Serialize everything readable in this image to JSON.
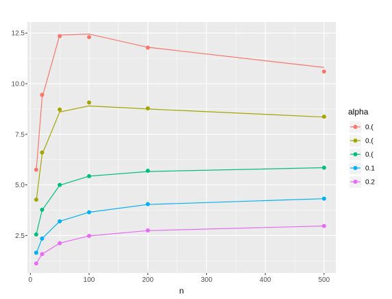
{
  "chart_data": {
    "type": "line",
    "xlabel": "n",
    "ylabel": "",
    "xlim": [
      -5,
      520
    ],
    "ylim": [
      0.65,
      13.05
    ],
    "x_ticks": [
      0,
      100,
      200,
      300,
      400,
      500
    ],
    "x_tick_labels": [
      "0",
      "100",
      "200",
      "300",
      "400",
      "500"
    ],
    "y_ticks": [
      2.5,
      5.0,
      7.5,
      10.0,
      12.5
    ],
    "y_tick_labels": [
      "2.5",
      "5.0",
      "7.5",
      "10.0",
      "12.5"
    ],
    "grid": true,
    "legend": {
      "title": "alpha",
      "placement": "right"
    },
    "x": [
      10,
      20,
      50,
      100,
      200,
      500
    ],
    "series": [
      {
        "name": "0.(",
        "color": "#F8766D",
        "points": [
          5.75,
          9.45,
          12.35,
          12.3,
          11.78,
          10.6
        ],
        "fit": [
          5.7,
          9.3,
          12.4,
          12.45,
          11.8,
          10.8
        ]
      },
      {
        "name": "0.(",
        "color": "#A3A500",
        "points": [
          4.27,
          6.6,
          8.72,
          9.07,
          8.78,
          8.37
        ],
        "fit": [
          4.2,
          6.5,
          8.6,
          8.9,
          8.75,
          8.35
        ]
      },
      {
        "name": "0.(",
        "color": "#00BF7D",
        "points": [
          2.55,
          3.77,
          5.0,
          5.43,
          5.7,
          5.85
        ],
        "fit": [
          2.55,
          3.75,
          4.98,
          5.43,
          5.66,
          5.85
        ]
      },
      {
        "name": "0.1",
        "color": "#00B0F6",
        "points": [
          1.65,
          2.35,
          3.2,
          3.65,
          4.05,
          4.32
        ],
        "fit": [
          1.62,
          2.35,
          3.2,
          3.65,
          4.03,
          4.32
        ]
      },
      {
        "name": "0.2",
        "color": "#E76BF3",
        "points": [
          1.12,
          1.58,
          2.12,
          2.48,
          2.75,
          2.97
        ],
        "fit": [
          1.12,
          1.58,
          2.12,
          2.48,
          2.74,
          2.97
        ]
      }
    ]
  }
}
